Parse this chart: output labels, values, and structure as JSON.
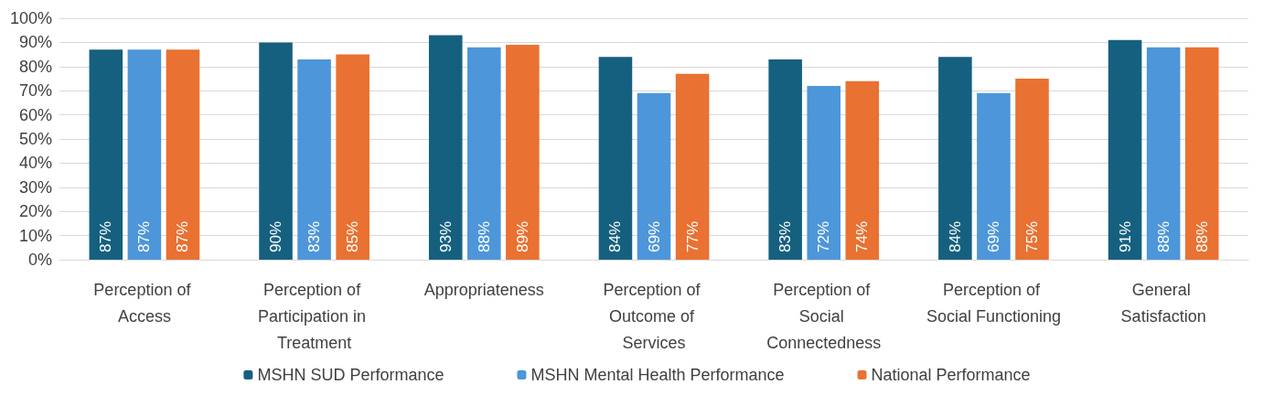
{
  "chart_data": {
    "type": "bar",
    "categories": [
      "Perception of Access",
      "Perception of Participation in Treatment",
      "Appropriateness",
      "Perception of Outcome of Services",
      "Perception of Social Connectedness",
      "Perception of Social Functioning",
      "General Satisfaction"
    ],
    "series": [
      {
        "name": "MSHN SUD Performance",
        "color": "#16607f",
        "values": [
          87,
          90,
          93,
          84,
          83,
          84,
          91
        ],
        "value_labels": [
          "87%",
          "90%",
          "93%",
          "84%",
          "83%",
          "84%",
          "91%"
        ]
      },
      {
        "name": "MSHN Mental Health Performance",
        "color": "#4d96d9",
        "values": [
          87,
          83,
          88,
          69,
          72,
          69,
          88
        ],
        "value_labels": [
          "87%",
          "83%",
          "88%",
          "69%",
          "72%",
          "69%",
          "88%"
        ]
      },
      {
        "name": "National Performance",
        "color": "#e97132",
        "values": [
          87,
          85,
          89,
          77,
          74,
          75,
          88
        ],
        "value_labels": [
          "87%",
          "85%",
          "89%",
          "77%",
          "74%",
          "75%",
          "88%"
        ]
      }
    ],
    "ylim": [
      0,
      100
    ],
    "yticks": [
      {
        "value": 0,
        "label": "0%"
      },
      {
        "value": 10,
        "label": "10%"
      },
      {
        "value": 20,
        "label": "20%"
      },
      {
        "value": 30,
        "label": "30%"
      },
      {
        "value": 40,
        "label": "40%"
      },
      {
        "value": 50,
        "label": "50%"
      },
      {
        "value": 60,
        "label": "60%"
      },
      {
        "value": 70,
        "label": "70%"
      },
      {
        "value": 80,
        "label": "80%"
      },
      {
        "value": 90,
        "label": "90%"
      },
      {
        "value": 100,
        "label": "100%"
      }
    ],
    "grid": "y",
    "legend": "bottom"
  }
}
